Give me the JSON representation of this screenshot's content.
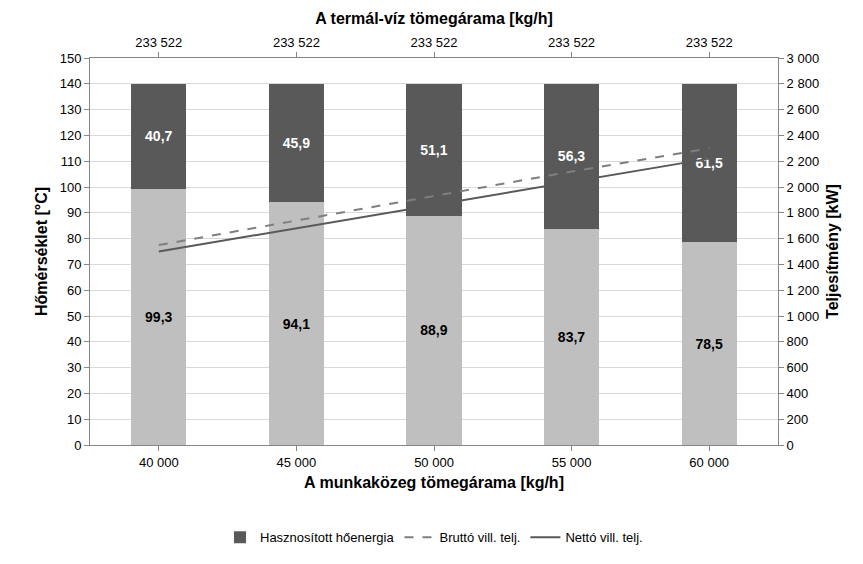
{
  "chart_data": {
    "type": "bar",
    "stacked": true,
    "data_labels": true,
    "grid": true,
    "legend": "bottom",
    "x_label": "A munkaközeg tömegárama [kg/h]",
    "y_label": "Hőmérséklet [°C]",
    "y2_label": "Teljesítmény [kW]",
    "categories": [
      "40 000",
      "45 000",
      "50 000",
      "55 000",
      "60 000"
    ],
    "top_axis": {
      "title": "A termál-víz tömegárama [kg/h]",
      "values": [
        233522,
        233522,
        233522,
        233522,
        233522
      ],
      "value_labels": [
        "233 522",
        "233 522",
        "233 522",
        "233 522",
        "233 522"
      ]
    },
    "series": [
      {
        "name": null,
        "type": "bar",
        "color": "#bfbfbf",
        "values": [
          99.3,
          94.1,
          88.9,
          83.7,
          78.5
        ],
        "value_labels": [
          "99,3",
          "94,1",
          "88,9",
          "83,7",
          "78,5"
        ]
      },
      {
        "name": "Hasznosított hőenergia",
        "type": "bar",
        "color": "#595959",
        "values": [
          40.7,
          45.9,
          51.1,
          56.3,
          61.5
        ],
        "value_labels": [
          "40,7",
          "45,9",
          "51,1",
          "56,3",
          "61,5"
        ]
      },
      {
        "name": "Bruttó vill. telj.",
        "type": "line",
        "axis": "y2",
        "line_style": "dash",
        "color": "#7f7f7f",
        "values": [
          1550,
          1740,
          1930,
          2120,
          2300
        ]
      },
      {
        "name": "Nettó vill. telj.",
        "type": "line",
        "axis": "y2",
        "line_style": "solid",
        "color": "#595959",
        "values": [
          1500,
          1680,
          1860,
          2040,
          2220
        ]
      }
    ],
    "ylim": [
      0,
      150
    ],
    "yticks": [
      0,
      10,
      20,
      30,
      40,
      50,
      60,
      70,
      80,
      90,
      100,
      110,
      120,
      130,
      140,
      150
    ],
    "y2lim": [
      0,
      3000
    ],
    "y2ticks": [
      0,
      200,
      400,
      600,
      800,
      {
        "value": 1000,
        "label": "1 000"
      },
      {
        "value": 1200,
        "label": "1 200"
      },
      {
        "value": 1400,
        "label": "1 400"
      },
      {
        "value": 1600,
        "label": "1 600"
      },
      {
        "value": 1800,
        "label": "1 800"
      },
      {
        "value": 2000,
        "label": "2 000"
      },
      {
        "value": 2200,
        "label": "2 200"
      },
      {
        "value": 2400,
        "label": "2 400"
      },
      {
        "value": 2600,
        "label": "2 600"
      },
      {
        "value": 2800,
        "label": "2 800"
      },
      {
        "value": 3000,
        "label": "3 000"
      }
    ]
  }
}
